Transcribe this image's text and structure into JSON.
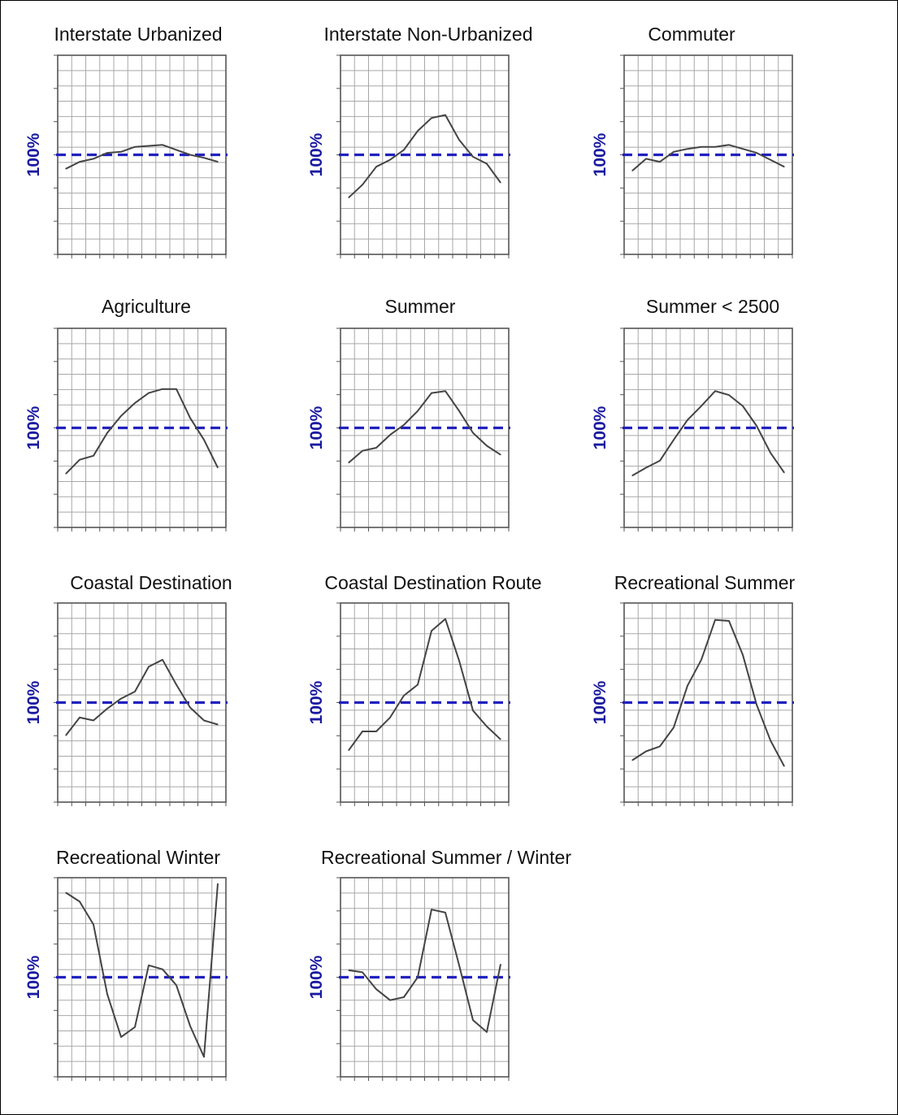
{
  "colors": {
    "background": "#ffffff",
    "frame": "#000000",
    "grid": "#a8a8a8",
    "panel_border": "#555555",
    "series_line": "#444444",
    "reference_line": "#2020c0",
    "y_label": "#1a1aa0"
  },
  "chart_data": [
    {
      "type": "line",
      "title": "Interstate Urbanized",
      "ylabel": "100%",
      "reference": 1.0,
      "ylim": [
        0,
        2
      ],
      "grid": true,
      "series": [
        {
          "values": [
            0.86,
            0.93,
            0.96,
            1.02,
            1.03,
            1.08,
            1.09,
            1.1,
            1.05,
            1.0,
            0.97,
            0.93
          ]
        }
      ]
    },
    {
      "type": "line",
      "title": "Interstate Non-Urbanized",
      "ylabel": "100%",
      "reference": 1.0,
      "ylim": [
        0,
        2
      ],
      "grid": true,
      "series": [
        {
          "values": [
            0.57,
            0.7,
            0.88,
            0.95,
            1.05,
            1.24,
            1.37,
            1.4,
            1.15,
            0.98,
            0.91,
            0.72
          ]
        }
      ]
    },
    {
      "type": "line",
      "title": "Commuter",
      "ylabel": "100%",
      "reference": 1.0,
      "ylim": [
        0,
        2
      ],
      "grid": true,
      "series": [
        {
          "values": [
            0.84,
            0.96,
            0.93,
            1.03,
            1.06,
            1.08,
            1.08,
            1.1,
            1.06,
            1.02,
            0.95,
            0.88
          ]
        }
      ]
    },
    {
      "type": "line",
      "title": "Agriculture",
      "ylabel": "100%",
      "reference": 1.0,
      "ylim": [
        0,
        2
      ],
      "grid": true,
      "series": [
        {
          "values": [
            0.54,
            0.68,
            0.72,
            0.95,
            1.12,
            1.25,
            1.35,
            1.39,
            1.39,
            1.1,
            0.88,
            0.6
          ]
        }
      ]
    },
    {
      "type": "line",
      "title": "Summer",
      "ylabel": "100%",
      "reference": 1.0,
      "ylim": [
        0,
        2
      ],
      "grid": true,
      "series": [
        {
          "values": [
            0.65,
            0.77,
            0.8,
            0.93,
            1.03,
            1.17,
            1.35,
            1.37,
            1.17,
            0.95,
            0.82,
            0.73
          ]
        }
      ]
    },
    {
      "type": "line",
      "title": "Summer < 2500",
      "ylabel": "100%",
      "reference": 1.0,
      "ylim": [
        0,
        2
      ],
      "grid": true,
      "series": [
        {
          "values": [
            0.52,
            0.6,
            0.67,
            0.88,
            1.08,
            1.22,
            1.37,
            1.33,
            1.22,
            1.02,
            0.75,
            0.55
          ]
        }
      ]
    },
    {
      "type": "line",
      "title": "Coastal Destination",
      "ylabel": "100%",
      "reference": 1.0,
      "ylim": [
        0,
        2
      ],
      "grid": true,
      "series": [
        {
          "values": [
            0.67,
            0.85,
            0.82,
            0.94,
            1.04,
            1.11,
            1.36,
            1.43,
            1.18,
            0.95,
            0.82,
            0.78
          ]
        }
      ]
    },
    {
      "type": "line",
      "title": "Coastal Destination Route",
      "ylabel": "100%",
      "reference": 1.0,
      "ylim": [
        0,
        2
      ],
      "grid": true,
      "series": [
        {
          "values": [
            0.52,
            0.71,
            0.71,
            0.85,
            1.07,
            1.18,
            1.72,
            1.84,
            1.42,
            0.92,
            0.76,
            0.63
          ]
        }
      ]
    },
    {
      "type": "line",
      "title": "Recreational Summer",
      "ylabel": "100%",
      "reference": 1.0,
      "ylim": [
        0,
        2
      ],
      "grid": true,
      "series": [
        {
          "values": [
            0.42,
            0.51,
            0.56,
            0.75,
            1.17,
            1.43,
            1.83,
            1.82,
            1.48,
            0.98,
            0.62,
            0.36
          ]
        }
      ]
    },
    {
      "type": "line",
      "title": "Recreational Winter",
      "ylabel": "100%",
      "reference": 1.0,
      "ylim": [
        0,
        2
      ],
      "grid": true,
      "series": [
        {
          "values": [
            1.85,
            1.76,
            1.53,
            0.83,
            0.4,
            0.5,
            1.12,
            1.08,
            0.92,
            0.51,
            0.2,
            1.94
          ]
        }
      ]
    },
    {
      "type": "line",
      "title": "Recreational Summer / Winter",
      "ylabel": "100%",
      "reference": 1.0,
      "ylim": [
        0,
        2
      ],
      "grid": true,
      "series": [
        {
          "values": [
            1.07,
            1.05,
            0.88,
            0.77,
            0.8,
            1.0,
            1.68,
            1.65,
            1.12,
            0.57,
            0.45,
            1.13
          ]
        }
      ]
    }
  ]
}
